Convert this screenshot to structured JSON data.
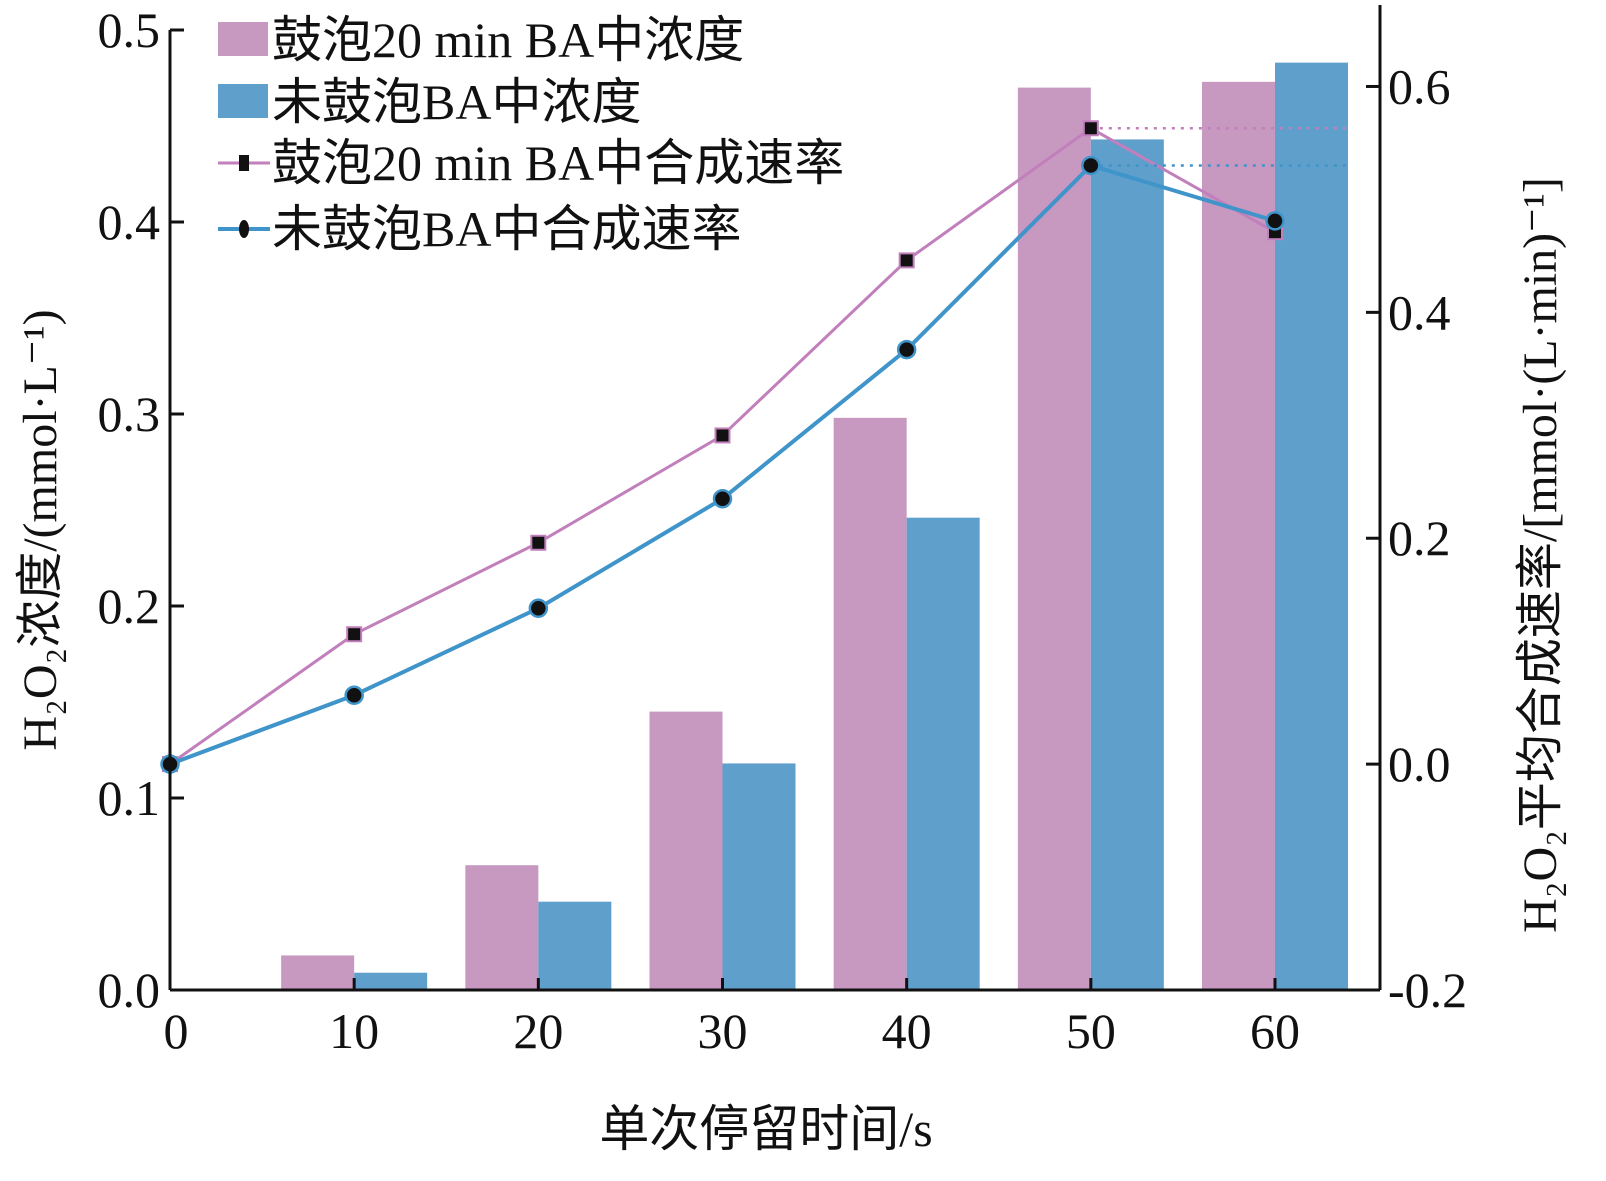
{
  "chart_data": {
    "type": "bar",
    "xlabel": "单次停留时间/s",
    "ylabel_left": "H₂O₂浓度/(mmol·L⁻¹)",
    "ylabel_right": "H₂O₂平均合成速率/[mmol·(L·min)⁻¹]",
    "x_ticks": [
      0,
      10,
      20,
      30,
      40,
      50,
      60
    ],
    "ylim_left": [
      0,
      0.5
    ],
    "yticks_left": [
      "0.0",
      "0.1",
      "0.2",
      "0.3",
      "0.4",
      "0.5"
    ],
    "ylim_right": [
      -0.2,
      0.65
    ],
    "yticks_right": [
      "-0.2",
      "0.0",
      "0.2",
      "0.4",
      "0.6"
    ],
    "legend_position": "top-left",
    "bar_series": [
      {
        "name": "鼓泡20 min BA中浓度",
        "color": "#c798c0",
        "x": [
          10,
          20,
          30,
          40,
          50,
          60
        ],
        "values": [
          0.018,
          0.065,
          0.145,
          0.298,
          0.47,
          0.473
        ]
      },
      {
        "name": "未鼓泡BA中浓度",
        "color": "#5f9fcc",
        "x": [
          10,
          20,
          30,
          40,
          50,
          60
        ],
        "values": [
          0.009,
          0.046,
          0.118,
          0.246,
          0.443,
          0.483
        ]
      }
    ],
    "line_series": [
      {
        "name": "鼓泡20 min BA中合成速率",
        "color": "#c17fbb",
        "marker": "square",
        "x": [
          0,
          10,
          20,
          30,
          40,
          50,
          60
        ],
        "values": [
          0.0,
          0.115,
          0.196,
          0.291,
          0.446,
          0.563,
          0.471
        ]
      },
      {
        "name": "未鼓泡BA中合成速率",
        "color": "#3f94c9",
        "marker": "circle",
        "x": [
          0,
          10,
          20,
          30,
          40,
          50,
          60
        ],
        "values": [
          0.0,
          0.061,
          0.138,
          0.235,
          0.367,
          0.53,
          0.481
        ]
      }
    ]
  }
}
